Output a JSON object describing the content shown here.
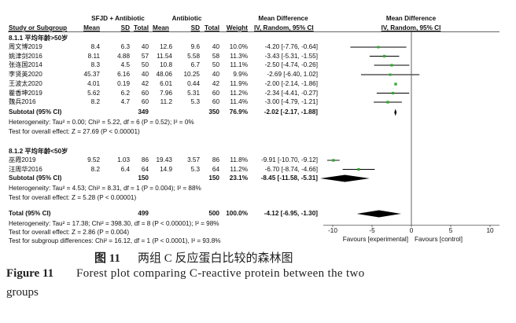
{
  "headers": {
    "group1": "SFJD + Antibiotic",
    "group2": "Antibiotic",
    "study": "Study or Subgroup",
    "mean": "Mean",
    "sd": "SD",
    "total": "Total",
    "weight": "Weight",
    "md_title": "Mean Difference",
    "md_method": "IV, Random, 95% CI",
    "plot_title": "Mean Difference",
    "plot_method": "IV, Random, 95% CI"
  },
  "subgroups": [
    {
      "title": "8.1.1 平均年龄>50岁",
      "studies": [
        {
          "name": "周文博2019",
          "m1": "8.4",
          "sd1": "6.3",
          "n1": "40",
          "m2": "12.6",
          "sd2": "9.6",
          "n2": "40",
          "weight": "10.0%",
          "ci": "-4.20 [-7.76, -0.64]",
          "md": -4.2,
          "lo": -7.76,
          "hi": -0.64,
          "w": 10.0
        },
        {
          "name": "姚津剑2016",
          "m1": "8.11",
          "sd1": "4.88",
          "n1": "57",
          "m2": "11.54",
          "sd2": "5.58",
          "n2": "58",
          "weight": "11.3%",
          "ci": "-3.43 [-5.31, -1.55]",
          "md": -3.43,
          "lo": -5.31,
          "hi": -1.55,
          "w": 11.3
        },
        {
          "name": "张连国2014",
          "m1": "8.3",
          "sd1": "4.5",
          "n1": "50",
          "m2": "10.8",
          "sd2": "6.7",
          "n2": "50",
          "weight": "11.1%",
          "ci": "-2.50 [-4.74, -0.26]",
          "md": -2.5,
          "lo": -4.74,
          "hi": -0.26,
          "w": 11.1
        },
        {
          "name": "李贤英2020",
          "m1": "45.37",
          "sd1": "6.16",
          "n1": "40",
          "m2": "48.06",
          "sd2": "10.25",
          "n2": "40",
          "weight": "9.9%",
          "ci": "-2.69 [-6.40, 1.02]",
          "md": -2.69,
          "lo": -6.4,
          "hi": 1.02,
          "w": 9.9
        },
        {
          "name": "王波太2020",
          "m1": "4.01",
          "sd1": "0.19",
          "n1": "42",
          "m2": "6.01",
          "sd2": "0.44",
          "n2": "42",
          "weight": "11.9%",
          "ci": "-2.00 [-2.14, -1.86]",
          "md": -2.0,
          "lo": -2.14,
          "hi": -1.86,
          "w": 11.9
        },
        {
          "name": "瞿香坤2019",
          "m1": "5.62",
          "sd1": "6.2",
          "n1": "60",
          "m2": "7.96",
          "sd2": "5.31",
          "n2": "60",
          "weight": "11.2%",
          "ci": "-2.34 [-4.41, -0.27]",
          "md": -2.34,
          "lo": -4.41,
          "hi": -0.27,
          "w": 11.2
        },
        {
          "name": "魏兵2016",
          "m1": "8.2",
          "sd1": "4.7",
          "n1": "60",
          "m2": "11.2",
          "sd2": "5.3",
          "n2": "60",
          "weight": "11.4%",
          "ci": "-3.00 [-4.79, -1.21]",
          "md": -3.0,
          "lo": -4.79,
          "hi": -1.21,
          "w": 11.4
        }
      ],
      "subtotal": {
        "label": "Subtotal (95% CI)",
        "n1": "349",
        "n2": "350",
        "weight": "76.9%",
        "ci": "-2.02 [-2.17, -1.88]",
        "md": -2.02,
        "lo": -2.17,
        "hi": -1.88
      },
      "heterogeneity": "Heterogeneity: Tau² = 0.00; Chi² = 5.22, df = 6 (P = 0.52); I² = 0%",
      "overall": "Test for overall effect: Z = 27.69 (P < 0.00001)"
    },
    {
      "title": "8.1.2 平均年龄<50岁",
      "studies": [
        {
          "name": "巫霞2019",
          "m1": "9.52",
          "sd1": "1.03",
          "n1": "86",
          "m2": "19.43",
          "sd2": "3.57",
          "n2": "86",
          "weight": "11.8%",
          "ci": "-9.91 [-10.70, -9.12]",
          "md": -9.91,
          "lo": -10.7,
          "hi": -9.12,
          "w": 11.8
        },
        {
          "name": "汪周华2016",
          "m1": "8.2",
          "sd1": "6.4",
          "n1": "64",
          "m2": "14.9",
          "sd2": "5.3",
          "n2": "64",
          "weight": "11.2%",
          "ci": "-6.70 [-8.74, -4.66]",
          "md": -6.7,
          "lo": -8.74,
          "hi": -4.66,
          "w": 11.2
        }
      ],
      "subtotal": {
        "label": "Subtotal (95% CI)",
        "n1": "150",
        "n2": "150",
        "weight": "23.1%",
        "ci": "-8.45 [-11.58, -5.31]",
        "md": -8.45,
        "lo": -11.58,
        "hi": -5.31
      },
      "heterogeneity": "Heterogeneity: Tau² = 4.53; Chi² = 8.31, df = 1 (P = 0.004); I² = 88%",
      "overall": "Test for overall effect: Z = 5.28 (P < 0.00001)"
    }
  ],
  "total": {
    "label": "Total (95% CI)",
    "n1": "499",
    "n2": "500",
    "weight": "100.0%",
    "ci": "-4.12 [-6.95, -1.30]",
    "md": -4.12,
    "lo": -6.95,
    "hi": -1.3,
    "heterogeneity": "Heterogeneity: Tau² = 17.38; Chi² = 398.30, df = 8 (P < 0.00001); I² = 98%",
    "overall": "Test for overall effect: Z = 2.86 (P = 0.004)",
    "subgroup_diff": "Test for subgroup differences: Chi² = 16.12, df = 1 (P < 0.0001), I² = 93.8%"
  },
  "chart_data": {
    "type": "scatter",
    "subtype": "forest",
    "xlim": [
      -10,
      10
    ],
    "xticks": [
      "-10",
      "-5",
      "0",
      "5",
      "10"
    ],
    "xtick_values": [
      -10,
      -5,
      0,
      5,
      10
    ],
    "favours_left": "Favours [experimental]",
    "favours_right": "Favours [control]",
    "square_color": "#2eaa2e",
    "diamond_color": "#000000"
  },
  "caption": {
    "cn_label": "图 11",
    "cn_text": "两组 C 反应蛋白比较的森林图",
    "en_label": "Figure 11",
    "en_text": "Forest plot comparing C-reactive protein between the two",
    "en_text2": "groups"
  }
}
